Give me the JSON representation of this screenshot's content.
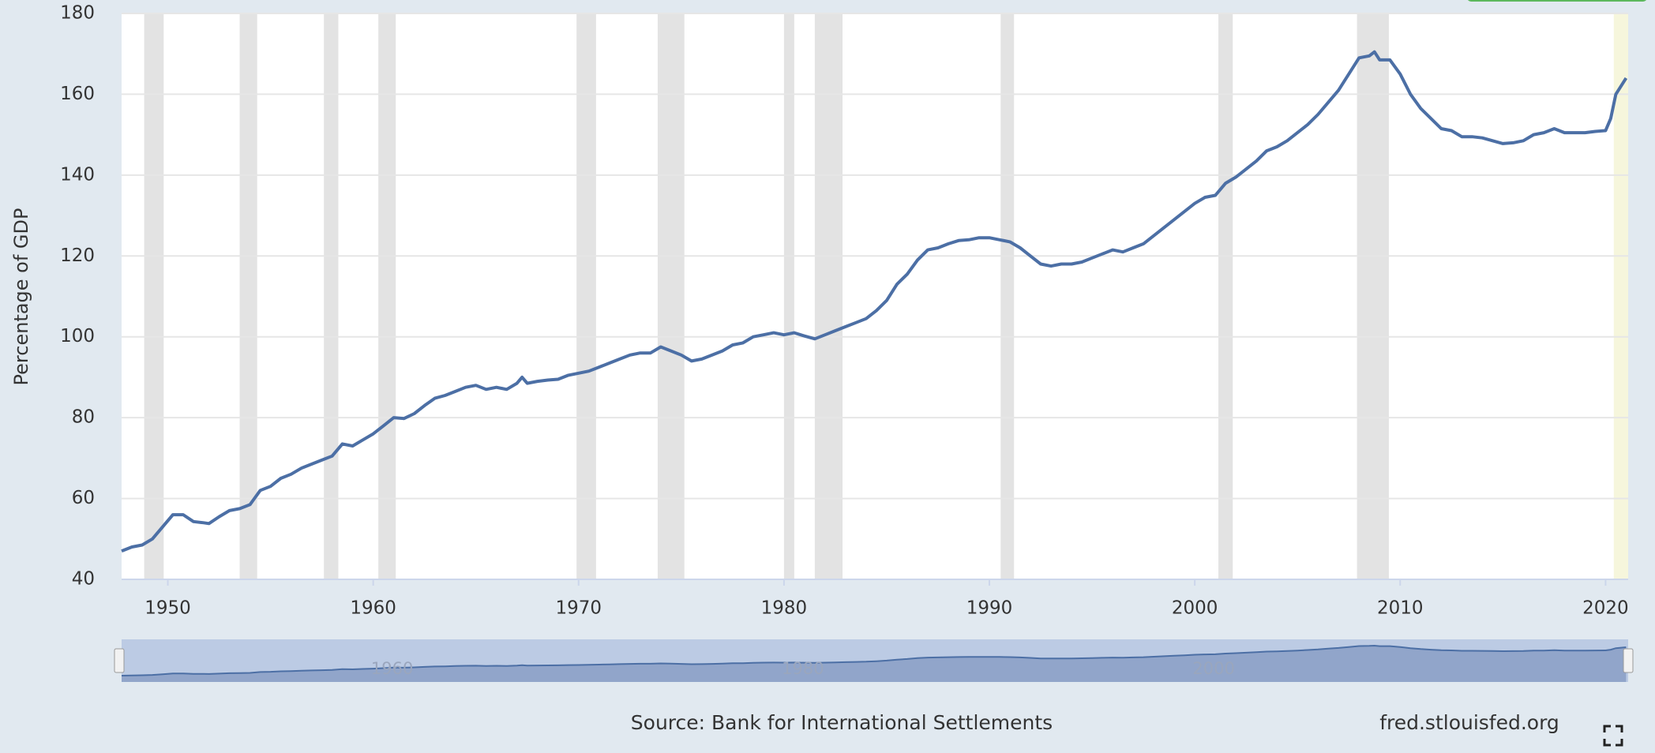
{
  "chart_data": {
    "type": "line",
    "y_label": "Percentage of GDP",
    "source": "Source: Bank for International Settlements",
    "site": "fred.stlouisfed.org",
    "xlim": [
      1947.75,
      2021.1
    ],
    "ylim": [
      40,
      180
    ],
    "xticks": [
      1950,
      1960,
      1970,
      1980,
      1990,
      2000,
      2010,
      2020
    ],
    "yticks": [
      40,
      60,
      80,
      100,
      120,
      140,
      160,
      180
    ],
    "navigator_xticks": [
      1960,
      1980,
      2000
    ],
    "grid": true,
    "recession_color": "#e3e3e3",
    "recessions": [
      [
        1948.85,
        1949.8
      ],
      [
        1953.5,
        1954.35
      ],
      [
        1957.6,
        1958.3
      ],
      [
        1960.25,
        1961.1
      ],
      [
        1969.9,
        1970.85
      ],
      [
        1973.85,
        1975.15
      ],
      [
        1980.0,
        1980.5
      ],
      [
        1981.5,
        1982.85
      ],
      [
        1990.55,
        1991.2
      ],
      [
        2001.15,
        2001.85
      ],
      [
        2007.9,
        2009.45
      ]
    ],
    "provisional_color": "#f6f6dc",
    "provisional_recession": [
      2020.4,
      2021.1
    ],
    "series": [
      {
        "name": "Percentage of GDP",
        "color": "#4c6fa5",
        "x": [
          1947.75,
          1948.25,
          1948.75,
          1949.25,
          1949.75,
          1950.25,
          1950.75,
          1951.25,
          1951.75,
          1952.0,
          1952.5,
          1953.0,
          1953.5,
          1954.0,
          1954.5,
          1955.0,
          1955.5,
          1956.0,
          1956.5,
          1957.0,
          1957.5,
          1958.0,
          1958.5,
          1959.0,
          1959.5,
          1960.0,
          1960.5,
          1961.0,
          1961.5,
          1962.0,
          1962.5,
          1963.0,
          1963.5,
          1964.0,
          1964.5,
          1965.0,
          1965.5,
          1966.0,
          1966.5,
          1967.0,
          1967.25,
          1967.5,
          1968.0,
          1968.5,
          1969.0,
          1969.5,
          1970.0,
          1970.5,
          1971.0,
          1971.5,
          1972.0,
          1972.5,
          1973.0,
          1973.5,
          1974.0,
          1974.5,
          1975.0,
          1975.5,
          1976.0,
          1976.5,
          1977.0,
          1977.5,
          1978.0,
          1978.5,
          1979.0,
          1979.5,
          1980.0,
          1980.5,
          1981.0,
          1981.5,
          1982.0,
          1982.5,
          1983.0,
          1983.5,
          1984.0,
          1984.5,
          1985.0,
          1985.5,
          1986.0,
          1986.5,
          1987.0,
          1987.5,
          1988.0,
          1988.5,
          1989.0,
          1989.5,
          1990.0,
          1990.5,
          1991.0,
          1991.5,
          1992.0,
          1992.5,
          1993.0,
          1993.5,
          1994.0,
          1994.5,
          1995.0,
          1995.5,
          1996.0,
          1996.5,
          1997.0,
          1997.5,
          1998.0,
          1998.5,
          1999.0,
          1999.5,
          2000.0,
          2000.5,
          2001.0,
          2001.5,
          2002.0,
          2002.5,
          2003.0,
          2003.5,
          2004.0,
          2004.5,
          2005.0,
          2005.5,
          2006.0,
          2006.5,
          2007.0,
          2007.5,
          2008.0,
          2008.5,
          2008.75,
          2009.0,
          2009.5,
          2010.0,
          2010.5,
          2011.0,
          2011.5,
          2012.0,
          2012.5,
          2013.0,
          2013.5,
          2014.0,
          2014.5,
          2015.0,
          2015.5,
          2016.0,
          2016.5,
          2017.0,
          2017.5,
          2018.0,
          2018.5,
          2019.0,
          2019.5,
          2020.0,
          2020.25,
          2020.5,
          2021.0
        ],
        "values": [
          47,
          48,
          48.5,
          50,
          53,
          56,
          56,
          54.3,
          54,
          53.8,
          55.5,
          57,
          57.5,
          58.5,
          62,
          63,
          65,
          66,
          67.5,
          68.5,
          69.5,
          70.5,
          73.5,
          73,
          74.5,
          76,
          78,
          80,
          79.8,
          81,
          83,
          84.8,
          85.5,
          86.5,
          87.5,
          88,
          87,
          87.5,
          87,
          88.5,
          90,
          88.5,
          89,
          89.3,
          89.5,
          90.5,
          91,
          91.5,
          92.5,
          93.5,
          94.5,
          95.5,
          96,
          96,
          97.5,
          96.5,
          95.5,
          94,
          94.5,
          95.5,
          96.5,
          98,
          98.5,
          100,
          100.5,
          101,
          100.5,
          101,
          100.2,
          99.5,
          100.5,
          101.5,
          102.5,
          103.5,
          104.5,
          106.5,
          109,
          113,
          115.5,
          119,
          121.5,
          122,
          123,
          123.8,
          124,
          124.5,
          124.5,
          124,
          123.5,
          122,
          120,
          118,
          117.5,
          118,
          118,
          118.5,
          119.5,
          120.5,
          121.5,
          121,
          122,
          123,
          125,
          127,
          129,
          131,
          133,
          134.5,
          135,
          138,
          139.5,
          141.5,
          143.5,
          146,
          147,
          148.5,
          150.5,
          152.5,
          155,
          158,
          161,
          165,
          169,
          169.5,
          170.5,
          168.5,
          168.5,
          165,
          160,
          156.5,
          154,
          151.5,
          151,
          149.5,
          149.5,
          149.2,
          148.5,
          147.8,
          148,
          148.5,
          150,
          150.5,
          151.5,
          150.5,
          150.5,
          150.5,
          150.8,
          151,
          154,
          160,
          164
        ]
      }
    ]
  }
}
